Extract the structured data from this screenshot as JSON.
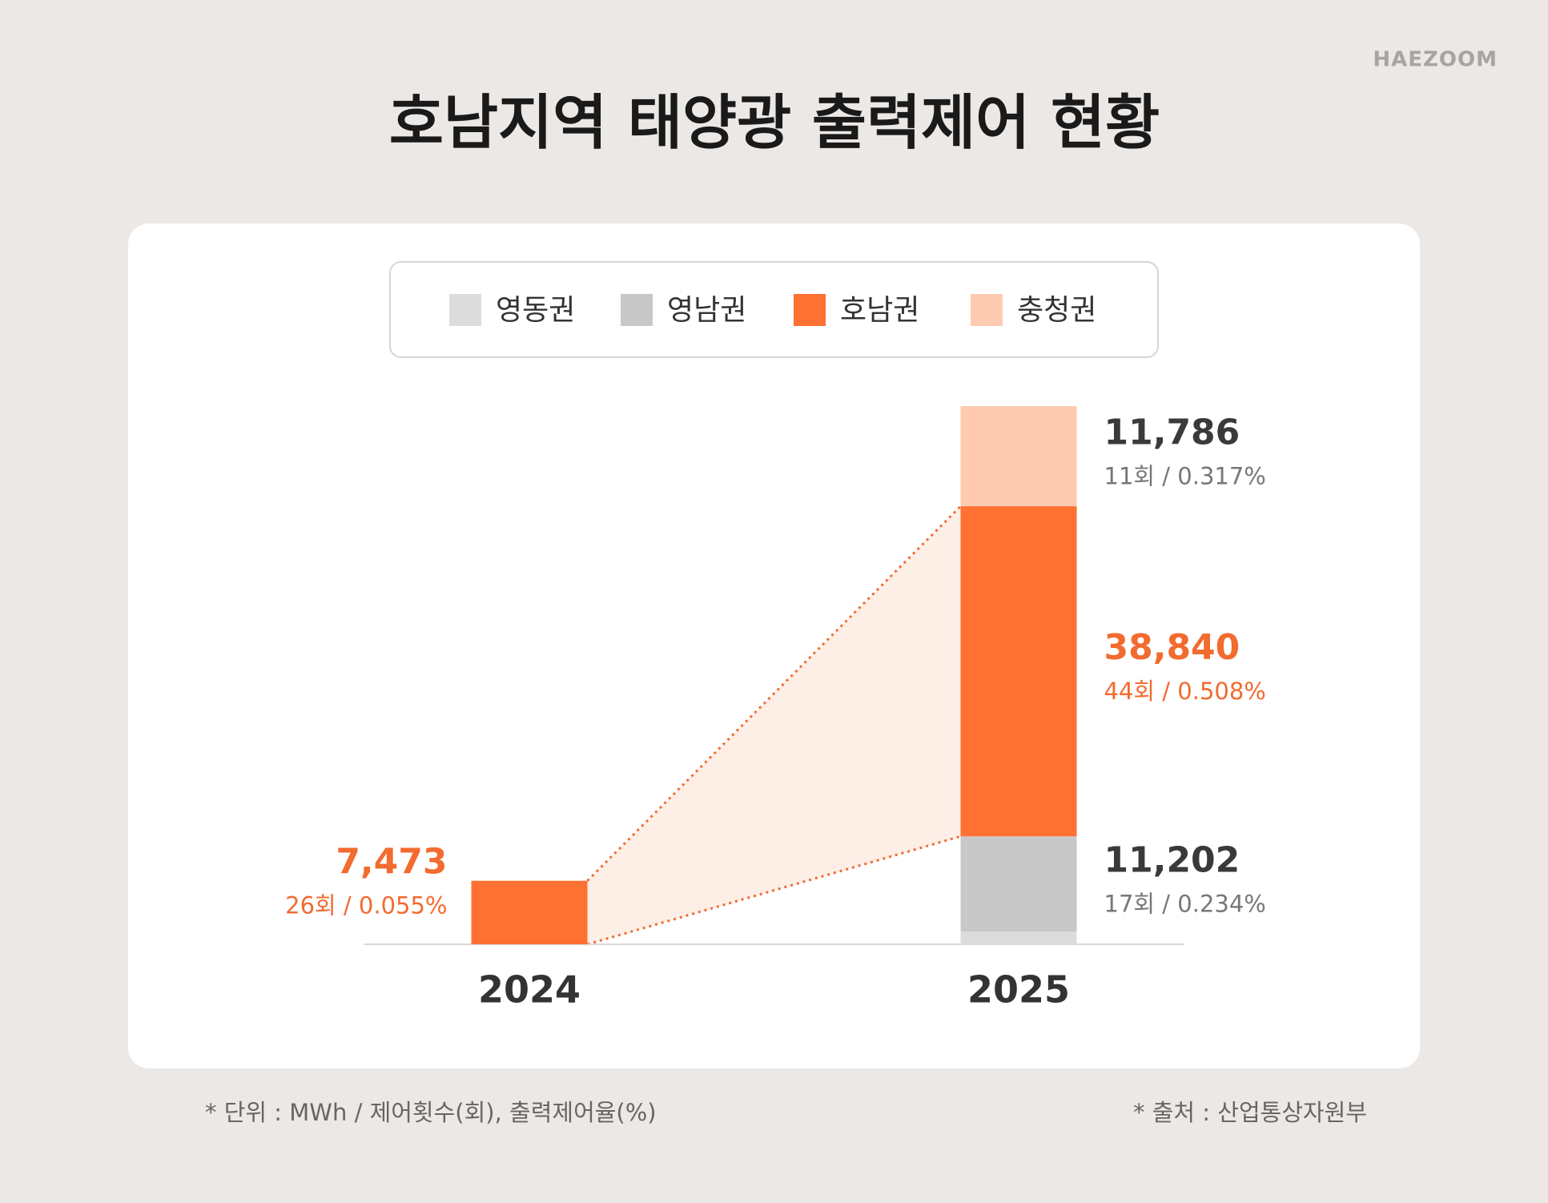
{
  "brand": "HAEZOOM",
  "chart_data": {
    "type": "stacked-bar",
    "title": "호남지역 태양광 출력제어 현황",
    "categories": [
      "2024",
      "2025"
    ],
    "highlight": "호남권",
    "series": [
      {
        "name": "영동권",
        "color": "#dcdcdc",
        "values": [
          null,
          1500
        ]
      },
      {
        "name": "영남권",
        "color": "#c8c8c8",
        "values": [
          null,
          11202
        ],
        "value_labels": [
          null,
          "11,202"
        ],
        "details": [
          null,
          "17회 / 0.234%"
        ]
      },
      {
        "name": "호남권",
        "color": "#ff7033",
        "values": [
          7473,
          38840
        ],
        "value_labels": [
          "7,473",
          "38,840"
        ],
        "details": [
          "26회 / 0.055%",
          "44회 / 0.508%"
        ]
      },
      {
        "name": "충청권",
        "color": "#ffcbb0",
        "values": [
          null,
          11786
        ],
        "value_labels": [
          null,
          "11,786"
        ],
        "details": [
          null,
          "11회 / 0.317%"
        ]
      }
    ],
    "notes": [
      "*  단위 : MWh / 제어횟수(회), 출력제어율(%)",
      "*  출처 : 산업통상자원부"
    ]
  }
}
